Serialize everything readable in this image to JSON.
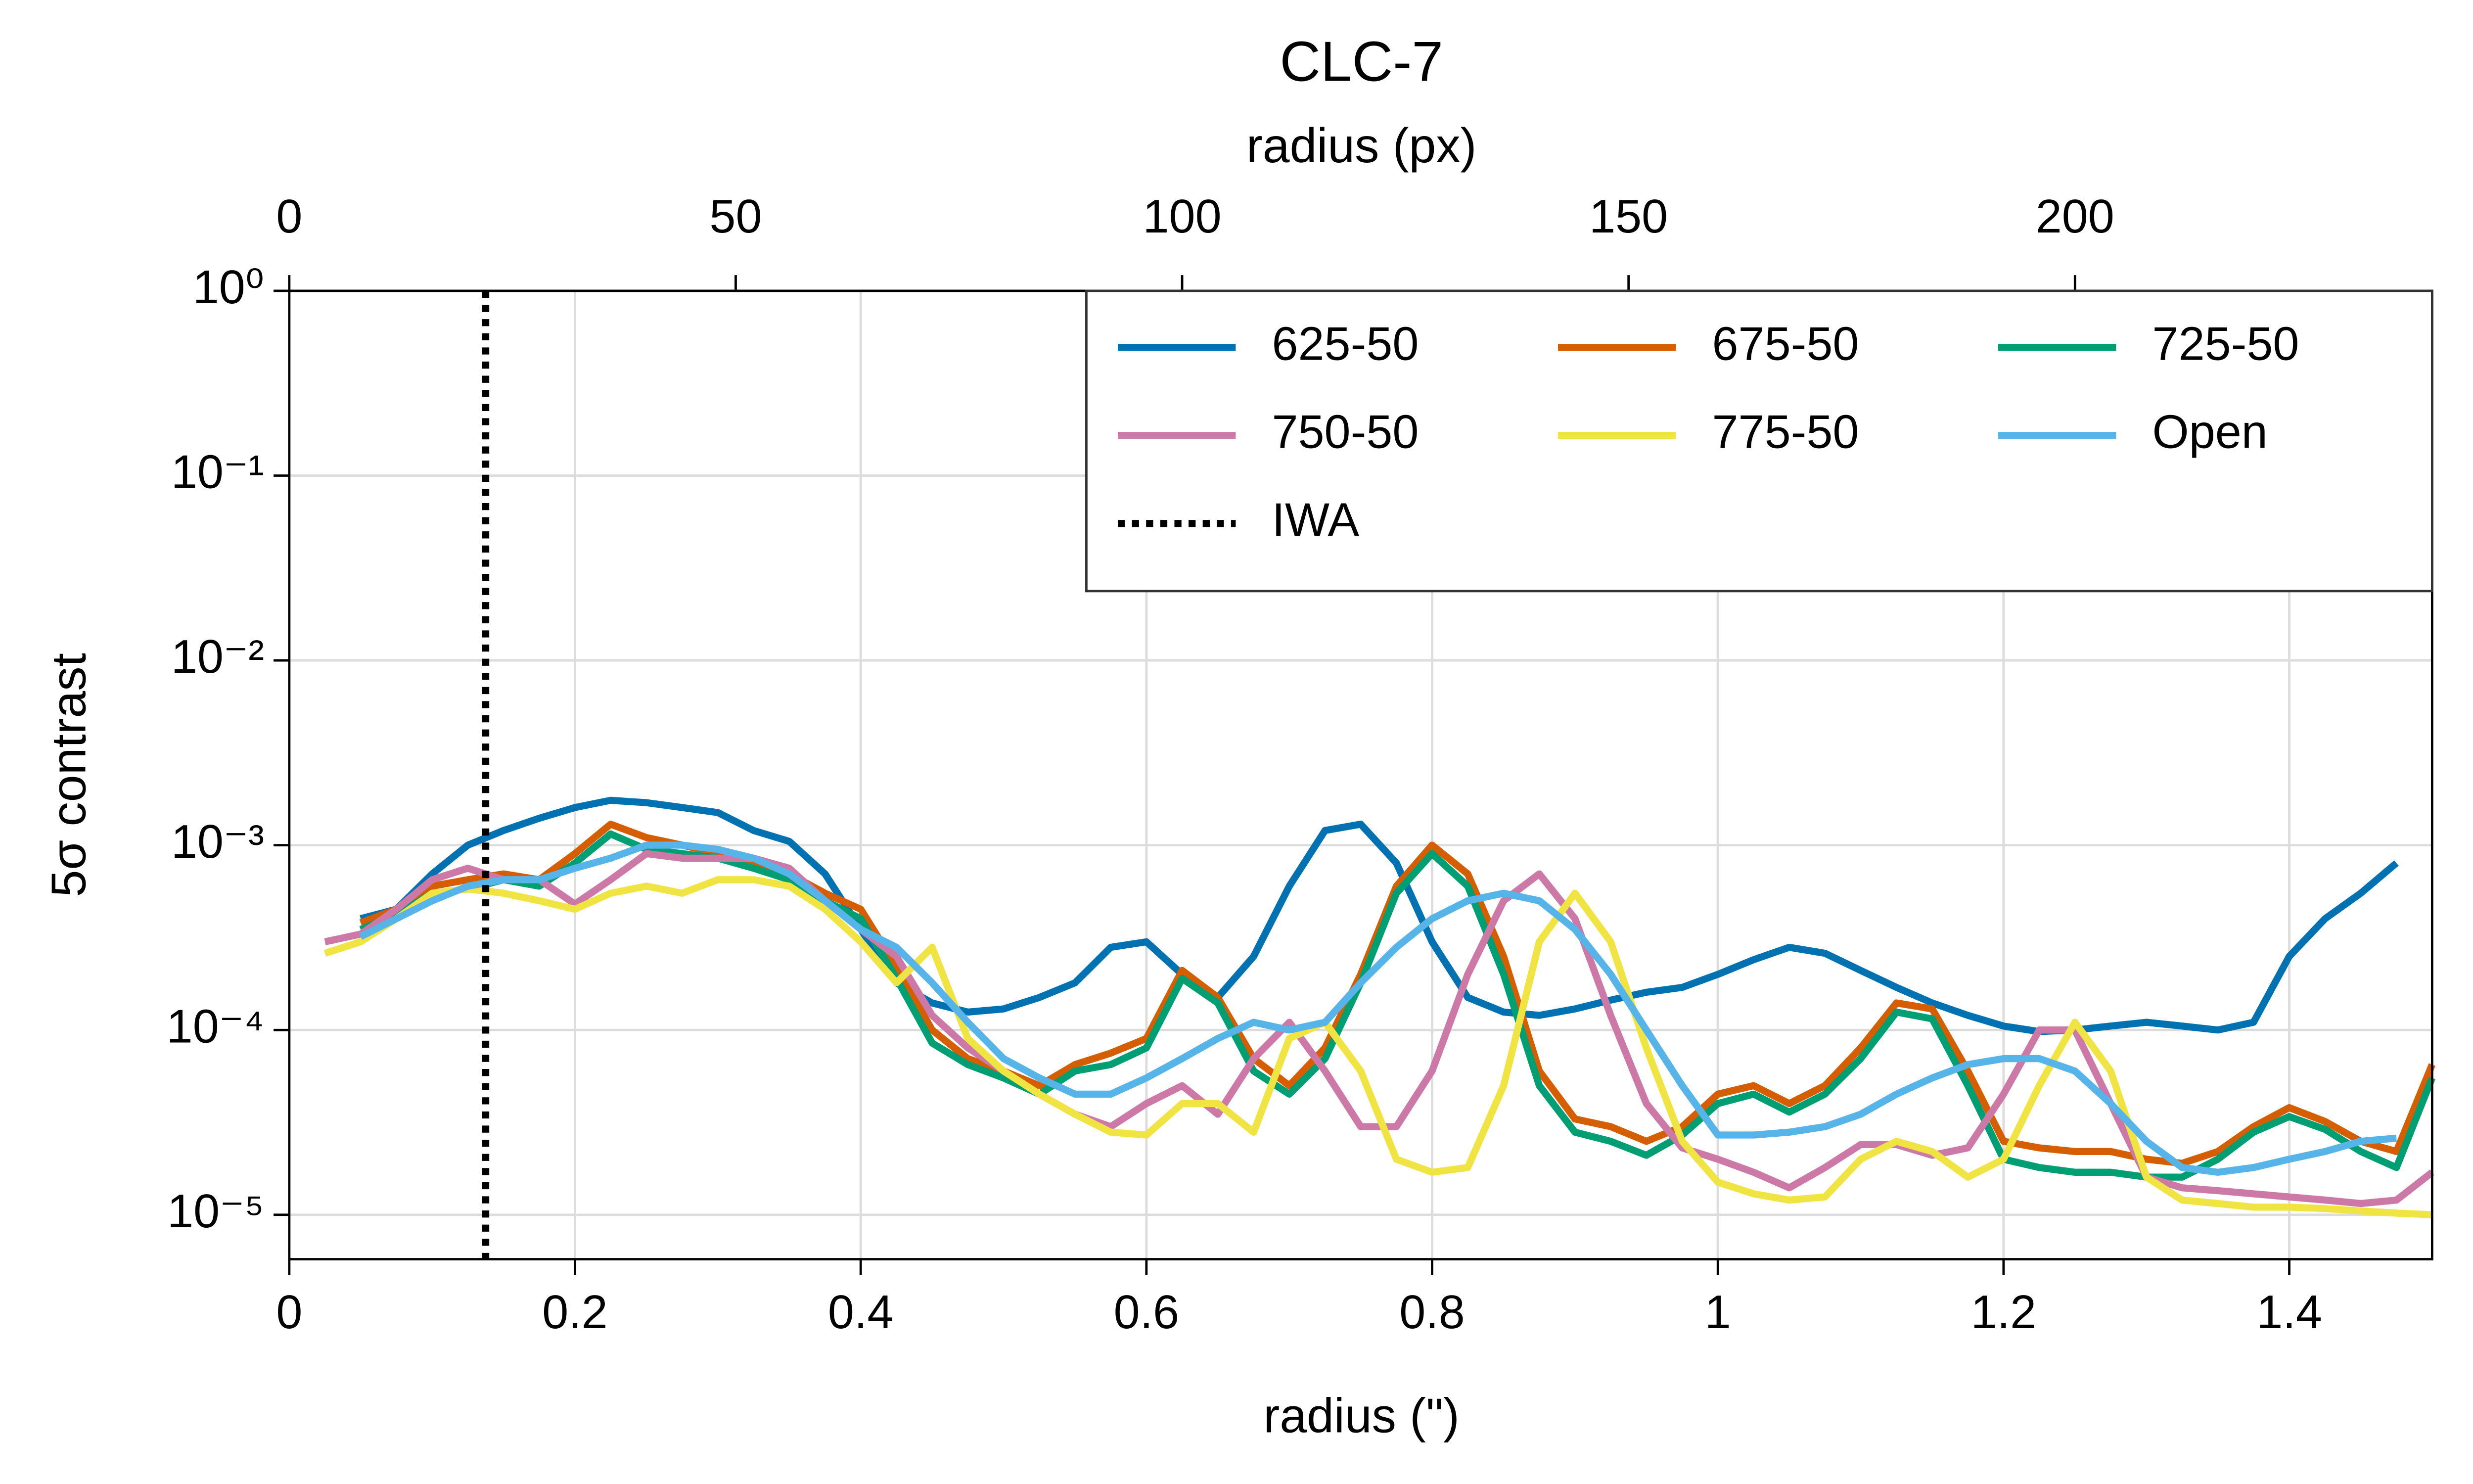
{
  "chart_data": {
    "type": "line",
    "title": "CLC-7",
    "xlabel": "radius (\")",
    "ylabel": "5σ contrast",
    "x2label": "radius (px)",
    "log_y": true,
    "grid": true,
    "legend": "upper right",
    "legend_columns": 3,
    "xlim": [
      0,
      1.5
    ],
    "xticks": [
      0,
      0.2,
      0.4,
      0.6,
      0.8,
      1,
      1.2,
      1.4
    ],
    "x2lim": [
      0,
      240
    ],
    "x2ticks": [
      0,
      50,
      100,
      150,
      200
    ],
    "ylim": [
      5.75e-06,
      1
    ],
    "yticks": [
      {
        "value": 1,
        "label": "10⁰"
      },
      {
        "value": 0.1,
        "label": "10⁻¹"
      },
      {
        "value": 0.01,
        "label": "10⁻²"
      },
      {
        "value": 0.001,
        "label": "10⁻³"
      },
      {
        "value": 0.0001,
        "label": "10⁻⁴"
      },
      {
        "value": 1e-05,
        "label": "10⁻⁵"
      }
    ],
    "x": [
      0.025,
      0.05,
      0.075,
      0.1,
      0.125,
      0.15,
      0.175,
      0.2,
      0.225,
      0.25,
      0.275,
      0.3,
      0.325,
      0.35,
      0.375,
      0.4,
      0.425,
      0.45,
      0.475,
      0.5,
      0.525,
      0.55,
      0.575,
      0.6,
      0.625,
      0.65,
      0.675,
      0.7,
      0.725,
      0.75,
      0.775,
      0.8,
      0.825,
      0.85,
      0.875,
      0.9,
      0.925,
      0.95,
      0.975,
      1.0,
      1.025,
      1.05,
      1.075,
      1.1,
      1.125,
      1.15,
      1.175,
      1.2,
      1.225,
      1.25,
      1.275,
      1.3,
      1.325,
      1.35,
      1.375,
      1.4,
      1.425,
      1.45,
      1.475,
      1.5
    ],
    "series": [
      {
        "name": "625-50",
        "color": "#0072b2",
        "values": [
          null,
          0.0004,
          0.00045,
          0.0007,
          0.001,
          0.0012,
          0.0014,
          0.0016,
          0.00175,
          0.0017,
          0.0016,
          0.0015,
          0.0012,
          0.00105,
          0.0007,
          0.00035,
          0.00018,
          0.00014,
          0.000125,
          0.00013,
          0.00015,
          0.00018,
          0.00028,
          0.0003,
          0.0002,
          0.00015,
          0.00025,
          0.0006,
          0.0012,
          0.0013,
          0.0008,
          0.0003,
          0.00015,
          0.000125,
          0.00012,
          0.00013,
          0.000145,
          0.00016,
          0.00017,
          0.0002,
          0.00024,
          0.00028,
          0.00026,
          0.00021,
          0.00017,
          0.00014,
          0.00012,
          0.000105,
          9.8e-05,
          0.0001,
          0.000105,
          0.00011,
          0.000105,
          0.0001,
          0.00011,
          0.00025,
          0.0004,
          0.00055,
          0.0008,
          null
        ]
      },
      {
        "name": "675-50",
        "color": "#d55e00",
        "values": [
          null,
          0.00038,
          0.00045,
          0.0006,
          0.00065,
          0.0007,
          0.00065,
          0.0009,
          0.0013,
          0.0011,
          0.001,
          0.0009,
          0.0008,
          0.0007,
          0.00055,
          0.00045,
          0.00022,
          0.0001,
          7e-05,
          6e-05,
          5e-05,
          6.5e-05,
          7.5e-05,
          9e-05,
          0.00021,
          0.00015,
          7e-05,
          5e-05,
          8e-05,
          0.0002,
          0.0006,
          0.001,
          0.0007,
          0.00025,
          6e-05,
          3.3e-05,
          3e-05,
          2.5e-05,
          3e-05,
          4.5e-05,
          5e-05,
          4e-05,
          5e-05,
          8e-05,
          0.00014,
          0.00013,
          6e-05,
          2.5e-05,
          2.3e-05,
          2.2e-05,
          2.2e-05,
          2e-05,
          1.9e-05,
          2.2e-05,
          3e-05,
          3.8e-05,
          3.2e-05,
          2.5e-05,
          2.2e-05,
          6.5e-05
        ]
      },
      {
        "name": "725-50",
        "color": "#009e73",
        "values": [
          null,
          0.00035,
          0.00042,
          0.00055,
          0.00058,
          0.00065,
          0.0006,
          0.0008,
          0.00115,
          0.00095,
          0.0009,
          0.00085,
          0.00075,
          0.00065,
          0.0005,
          0.0004,
          0.00019,
          8.5e-05,
          6.5e-05,
          5.5e-05,
          4.5e-05,
          6e-05,
          6.5e-05,
          8e-05,
          0.00019,
          0.00014,
          6e-05,
          4.5e-05,
          7e-05,
          0.00018,
          0.00055,
          0.0009,
          0.0006,
          0.0002,
          5e-05,
          2.8e-05,
          2.5e-05,
          2.1e-05,
          2.7e-05,
          4e-05,
          4.5e-05,
          3.6e-05,
          4.5e-05,
          7e-05,
          0.000125,
          0.000115,
          5e-05,
          2e-05,
          1.8e-05,
          1.7e-05,
          1.7e-05,
          1.6e-05,
          1.6e-05,
          2e-05,
          2.8e-05,
          3.4e-05,
          2.9e-05,
          2.2e-05,
          1.8e-05,
          5.5e-05
        ]
      },
      {
        "name": "750-50",
        "color": "#cc79a7",
        "values": [
          0.0003,
          0.00033,
          0.00045,
          0.00065,
          0.00075,
          0.00065,
          0.00065,
          0.00048,
          0.00065,
          0.0009,
          0.00085,
          0.00085,
          0.00085,
          0.00075,
          0.0005,
          0.00035,
          0.00025,
          0.00012,
          8e-05,
          6e-05,
          4.5e-05,
          3.5e-05,
          3e-05,
          4e-05,
          5e-05,
          3.5e-05,
          7e-05,
          0.00011,
          6e-05,
          3e-05,
          3e-05,
          6e-05,
          0.0002,
          0.0005,
          0.0007,
          0.0004,
          0.00012,
          4e-05,
          2.3e-05,
          2e-05,
          1.7e-05,
          1.4e-05,
          1.8e-05,
          2.4e-05,
          2.4e-05,
          2.1e-05,
          2.3e-05,
          4.5e-05,
          0.0001,
          0.0001,
          4e-05,
          1.6e-05,
          1.4e-05,
          1.35e-05,
          1.3e-05,
          1.25e-05,
          1.2e-05,
          1.15e-05,
          1.2e-05,
          1.7e-05
        ]
      },
      {
        "name": "775-50",
        "color": "#f0e442",
        "values": [
          0.00026,
          0.0003,
          0.0004,
          0.00055,
          0.00058,
          0.00055,
          0.0005,
          0.00045,
          0.00055,
          0.0006,
          0.00055,
          0.00065,
          0.00065,
          0.0006,
          0.00045,
          0.0003,
          0.00018,
          0.00028,
          9e-05,
          6e-05,
          4.5e-05,
          3.5e-05,
          2.8e-05,
          2.7e-05,
          4e-05,
          4e-05,
          2.8e-05,
          9e-05,
          0.00011,
          6e-05,
          2e-05,
          1.7e-05,
          1.8e-05,
          5e-05,
          0.0003,
          0.00055,
          0.0003,
          8e-05,
          2.5e-05,
          1.5e-05,
          1.3e-05,
          1.2e-05,
          1.25e-05,
          2e-05,
          2.5e-05,
          2.2e-05,
          1.6e-05,
          2e-05,
          5e-05,
          0.00011,
          6e-05,
          1.6e-05,
          1.2e-05,
          1.15e-05,
          1.1e-05,
          1.1e-05,
          1.08e-05,
          1.05e-05,
          1.02e-05,
          1e-05
        ]
      },
      {
        "name": "Open",
        "color": "#56b4e9",
        "values": [
          null,
          0.00032,
          0.0004,
          0.0005,
          0.0006,
          0.00065,
          0.00065,
          0.00075,
          0.00085,
          0.001,
          0.001,
          0.00095,
          0.00085,
          0.0007,
          0.0005,
          0.00035,
          0.00028,
          0.00018,
          0.00011,
          7e-05,
          5.5e-05,
          4.5e-05,
          4.5e-05,
          5.5e-05,
          7e-05,
          9e-05,
          0.00011,
          0.0001,
          0.00011,
          0.00018,
          0.00028,
          0.0004,
          0.0005,
          0.00055,
          0.0005,
          0.00035,
          0.0002,
          0.0001,
          5e-05,
          2.7e-05,
          2.7e-05,
          2.8e-05,
          3e-05,
          3.5e-05,
          4.5e-05,
          5.5e-05,
          6.5e-05,
          7e-05,
          7e-05,
          6e-05,
          4e-05,
          2.5e-05,
          1.8e-05,
          1.7e-05,
          1.8e-05,
          2e-05,
          2.2e-05,
          2.5e-05,
          2.6e-05,
          null
        ]
      }
    ],
    "vlines": [
      {
        "name": "IWA",
        "x": 0.1375,
        "color": "#000000",
        "style": "dotted"
      }
    ]
  }
}
